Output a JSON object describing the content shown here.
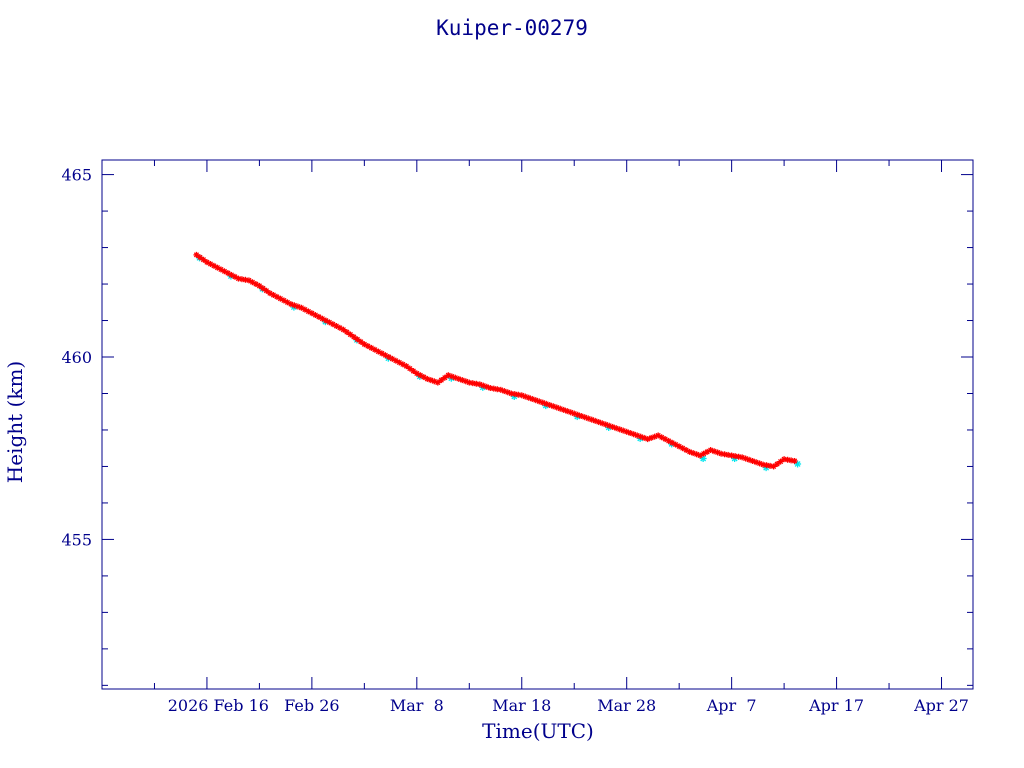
{
  "chart_data": {
    "type": "scatter",
    "title": "Kuiper-00279",
    "xlabel": "Time(UTC)",
    "ylabel": "Height (km)",
    "x_ticks": [
      "2026 Feb 16",
      "Feb 26",
      "Mar  8",
      "Mar 18",
      "Mar 28",
      "Apr  7",
      "Apr 17",
      "Apr 27"
    ],
    "x_range": [
      "2026-02-06",
      "2026-04-30"
    ],
    "y_ticks": [
      455,
      460,
      465
    ],
    "ylim": [
      450.9,
      465.4
    ],
    "grid": false,
    "colors": {
      "axis": "#00008b",
      "series_main": "#ff0000",
      "series_secondary": "#00e5ee",
      "line": "#000000"
    },
    "series": [
      {
        "x": [
          "2026-02-15",
          "2026-02-16",
          "2026-02-17",
          "2026-02-18",
          "2026-02-19",
          "2026-02-20",
          "2026-02-21",
          "2026-02-22",
          "2026-02-23",
          "2026-02-24",
          "2026-02-25",
          "2026-02-26",
          "2026-02-27",
          "2026-02-28",
          "2026-03-01",
          "2026-03-02",
          "2026-03-03",
          "2026-03-04",
          "2026-03-05",
          "2026-03-06",
          "2026-03-07",
          "2026-03-08",
          "2026-03-09",
          "2026-03-10",
          "2026-03-11",
          "2026-03-12",
          "2026-03-13",
          "2026-03-14",
          "2026-03-15",
          "2026-03-16",
          "2026-03-17",
          "2026-03-18",
          "2026-03-19",
          "2026-03-20",
          "2026-03-21",
          "2026-03-22",
          "2026-03-23",
          "2026-03-24",
          "2026-03-25",
          "2026-03-26",
          "2026-03-27",
          "2026-03-28",
          "2026-03-29",
          "2026-03-30",
          "2026-03-31",
          "2026-04-01",
          "2026-04-02",
          "2026-04-03",
          "2026-04-04",
          "2026-04-05",
          "2026-04-06",
          "2026-04-07",
          "2026-04-08",
          "2026-04-09",
          "2026-04-10",
          "2026-04-11",
          "2026-04-12",
          "2026-04-13"
        ],
        "y": [
          462.8,
          462.6,
          462.45,
          462.3,
          462.15,
          462.1,
          461.95,
          461.75,
          461.6,
          461.45,
          461.35,
          461.2,
          461.05,
          460.9,
          460.75,
          460.55,
          460.35,
          460.2,
          460.05,
          459.9,
          459.75,
          459.55,
          459.4,
          459.3,
          459.5,
          459.4,
          459.3,
          459.25,
          459.15,
          459.1,
          459.0,
          458.95,
          458.85,
          458.75,
          458.65,
          458.55,
          458.45,
          458.35,
          458.25,
          458.15,
          458.05,
          457.95,
          457.85,
          457.75,
          457.85,
          457.7,
          457.55,
          457.4,
          457.3,
          457.45,
          457.35,
          457.3,
          457.25,
          457.15,
          457.05,
          457.0,
          457.2,
          457.15
        ]
      }
    ]
  }
}
